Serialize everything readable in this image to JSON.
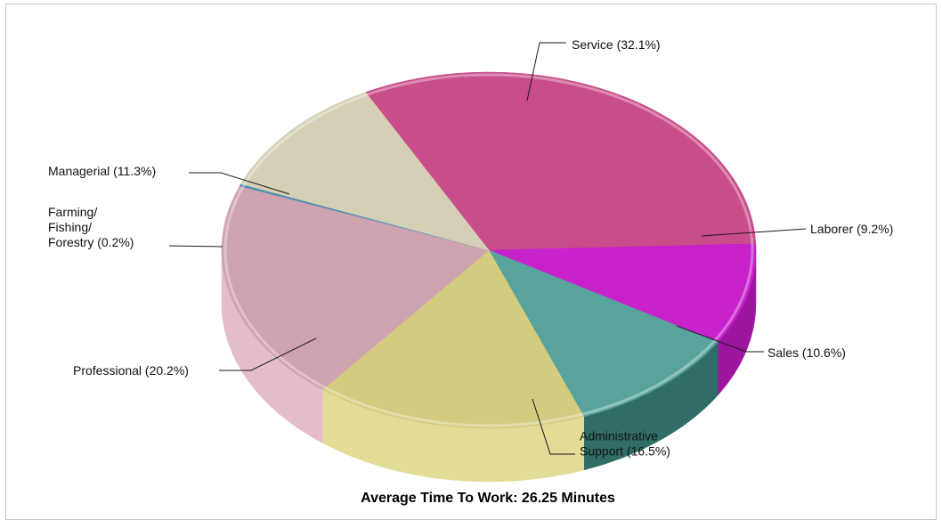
{
  "chart_data": {
    "type": "pie",
    "title": "Average Time To Work: 26.25 Minutes",
    "slices": [
      {
        "label": "Service (32.1%)",
        "value": 32.1,
        "color": "#c94d8a",
        "side": "#a93c73"
      },
      {
        "label": "Laborer (9.2%)",
        "value": 9.2,
        "color": "#c722cc",
        "side": "#9d169f"
      },
      {
        "label": "Sales (10.6%)",
        "value": 10.6,
        "color": "#58a39c",
        "side": "#2f6d66"
      },
      {
        "label": "Administrative Support (16.5%)",
        "lines": [
          "Administrative",
          "Support (16.5%)"
        ],
        "value": 16.5,
        "color": "#d3cc80",
        "side": "#e3dc97"
      },
      {
        "label": "Professional (20.2%)",
        "value": 20.2,
        "color": "#cfa2b0",
        "side": "#e4bccb"
      },
      {
        "label": "Farming/ Fishing/ Forestry (0.2%)",
        "lines": [
          "Farming/",
          "Fishing/",
          "Forestry (0.2%)"
        ],
        "value": 0.2,
        "color": "#4b8fb6",
        "side": "#4b8fb6"
      },
      {
        "label": "Managerial (11.3%)",
        "value": 11.3,
        "color": "#d5cfb5",
        "side": "#e2dcc6"
      }
    ]
  }
}
